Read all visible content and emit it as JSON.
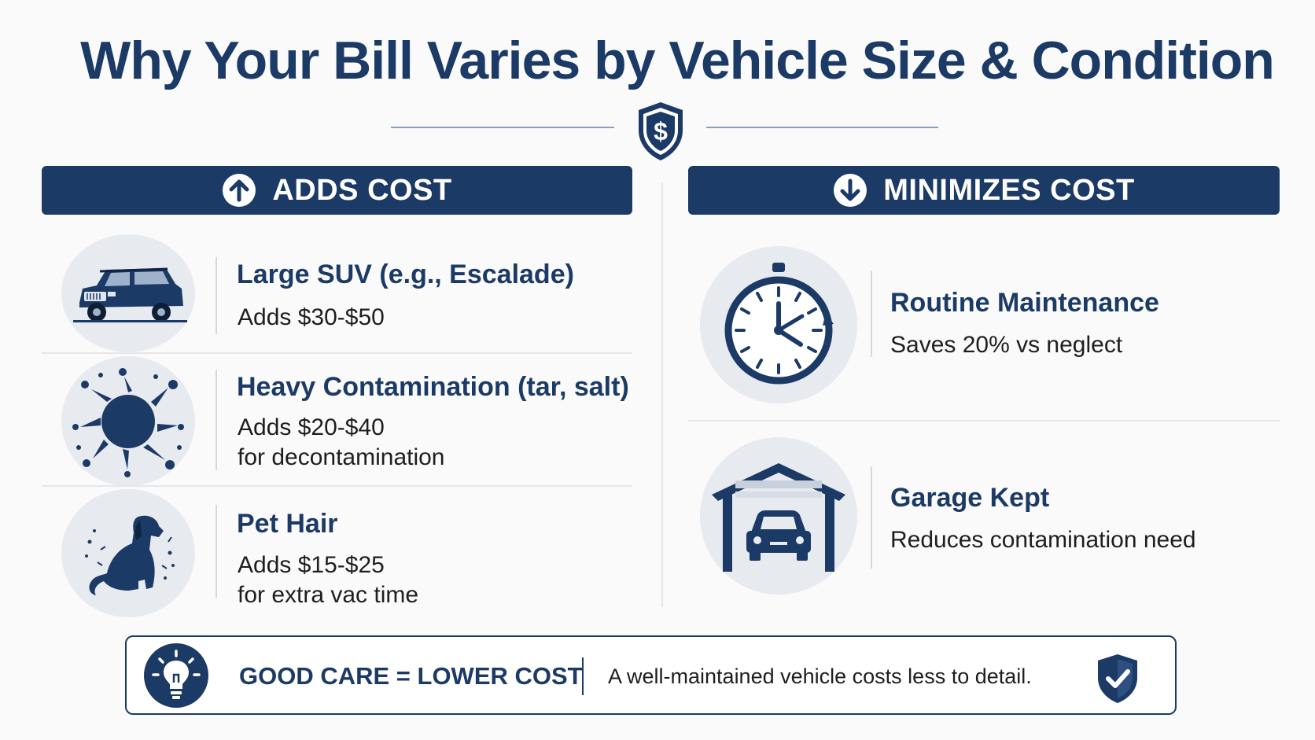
{
  "title": "Why Your Bill Varies by Vehicle Size & Condition",
  "header_icon": "shield-dollar-icon",
  "left_header": {
    "label": "ADDS COST",
    "icon": "arrow-up-circle-icon"
  },
  "right_header": {
    "label": "MINIMIZES COST",
    "icon": "arrow-down-circle-icon"
  },
  "adds_cost": [
    {
      "title": "Large SUV (e.g., Escalade)",
      "desc": [
        "Adds $30-$50"
      ],
      "icon": "suv-icon"
    },
    {
      "title": "Heavy Contamination (tar, salt)",
      "desc": [
        "Adds $20-$40",
        "for decontamination"
      ],
      "icon": "splatter-icon"
    },
    {
      "title": "Pet Hair",
      "desc": [
        "Adds $15-$25",
        "for extra vac time"
      ],
      "icon": "dog-icon"
    }
  ],
  "minimizes_cost": [
    {
      "title": "Routine Maintenance",
      "desc": [
        "Saves 20% vs neglect"
      ],
      "icon": "stopwatch-icon"
    },
    {
      "title": "Garage Kept",
      "desc": [
        "Reduces contamination need"
      ],
      "icon": "garage-icon"
    }
  ],
  "footer": {
    "label": "GOOD CARE = LOWER COST",
    "text": "A well-maintained vehicle costs less to detail.",
    "left_icon": "lightbulb-icon",
    "right_icon": "shield-check-icon"
  },
  "colors": {
    "navy": "#1c3a66",
    "circle_bg": "#e7eaef",
    "text": "#1e1e1e"
  }
}
